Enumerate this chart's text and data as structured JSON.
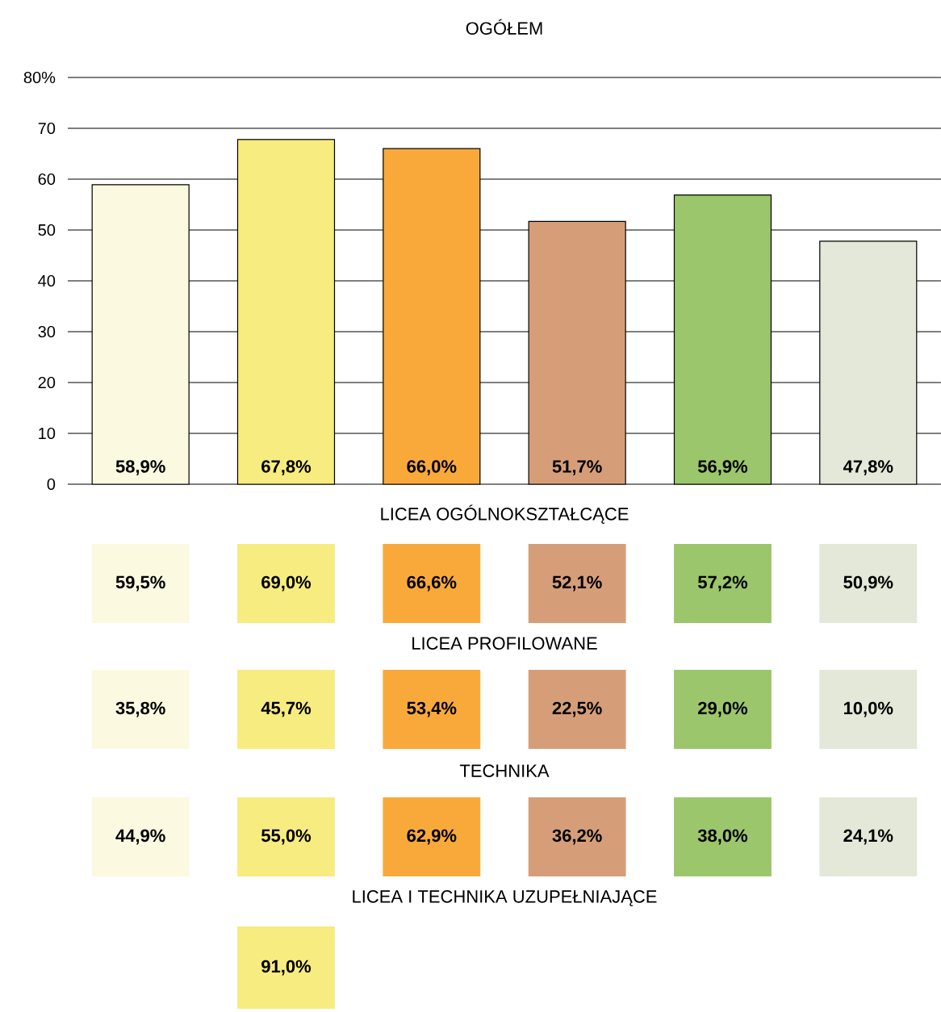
{
  "chart_data": [
    {
      "type": "bar",
      "title": "OGÓŁEM",
      "categories": [
        null,
        null,
        null,
        null,
        null,
        null
      ],
      "values": [
        58.9,
        67.8,
        66.0,
        51.7,
        56.9,
        47.8
      ],
      "colors": [
        "#fbf9e0",
        "#f7ec7f",
        "#f9a93a",
        "#d69e78",
        "#9bc66b",
        "#e3e8d8"
      ],
      "value_labels": [
        "58,9%",
        "67,8%",
        "66,0%",
        "51,7%",
        "56,9%",
        "47,8%"
      ],
      "ylim": [
        0,
        80
      ],
      "yticks": [
        0,
        10,
        20,
        30,
        40,
        50,
        60,
        70,
        {
          "value": 80,
          "label": "80%"
        }
      ],
      "grid": "y"
    },
    {
      "type": "other",
      "title": "LICEA OGÓLNOKSZTAŁCĄCE",
      "categories": [
        null,
        null,
        null,
        null,
        null,
        null
      ],
      "values": [
        59.5,
        69.0,
        66.6,
        52.1,
        57.2,
        50.9
      ],
      "colors": [
        "#fbf9e0",
        "#f7ec7f",
        "#f9a93a",
        "#d69e78",
        "#9bc66b",
        "#e3e8d8"
      ],
      "value_labels": [
        "59,5%",
        "69,0%",
        "66,6%",
        "52,1%",
        "57,2%",
        "50,9%"
      ]
    },
    {
      "type": "other",
      "title": "LICEA PROFILOWANE",
      "categories": [
        null,
        null,
        null,
        null,
        null,
        null
      ],
      "values": [
        35.8,
        45.7,
        53.4,
        22.5,
        29.0,
        10.0
      ],
      "colors": [
        "#fbf9e0",
        "#f7ec7f",
        "#f9a93a",
        "#d69e78",
        "#9bc66b",
        "#e3e8d8"
      ],
      "value_labels": [
        "35,8%",
        "45,7%",
        "53,4%",
        "22,5%",
        "29,0%",
        "10,0%"
      ]
    },
    {
      "type": "other",
      "title": "TECHNIKA",
      "categories": [
        null,
        null,
        null,
        null,
        null,
        null
      ],
      "values": [
        44.9,
        55.0,
        62.9,
        36.2,
        38.0,
        24.1
      ],
      "colors": [
        "#fbf9e0",
        "#f7ec7f",
        "#f9a93a",
        "#d69e78",
        "#9bc66b",
        "#e3e8d8"
      ],
      "value_labels": [
        "44,9%",
        "55,0%",
        "62,9%",
        "36,2%",
        "38,0%",
        "24,1%"
      ]
    },
    {
      "type": "other",
      "title": "LICEA I TECHNIKA UZUPEŁNIAJĄCE",
      "categories": [
        null,
        null,
        null,
        null,
        null,
        null
      ],
      "values": [
        null,
        91.0,
        null,
        null,
        null,
        null
      ],
      "colors": [
        "#fbf9e0",
        "#f7ec7f",
        "#f9a93a",
        "#d69e78",
        "#9bc66b",
        "#e3e8d8"
      ],
      "value_labels": [
        null,
        "91,0%",
        null,
        null,
        null,
        null
      ]
    }
  ]
}
